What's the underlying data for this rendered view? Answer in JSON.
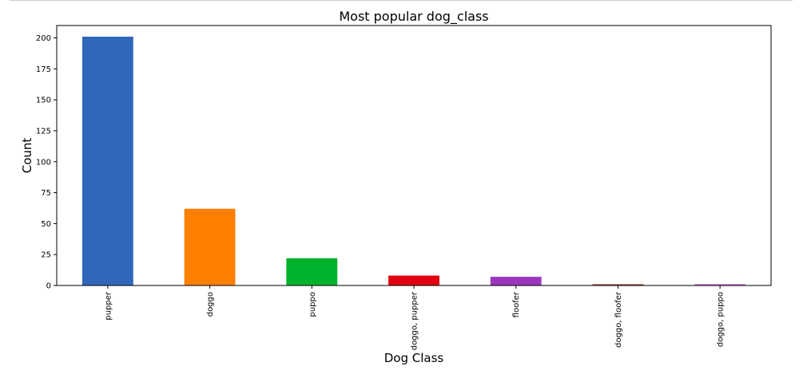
{
  "chart_data": {
    "type": "bar",
    "title": "Most popular dog_class",
    "xlabel": "Dog Class",
    "ylabel": "Count",
    "ylim": [
      0,
      210
    ],
    "yticks": [
      0,
      25,
      50,
      75,
      100,
      125,
      150,
      175,
      200
    ],
    "categories": [
      "pupper",
      "doggo",
      "puppo",
      "doggo, pupper",
      "floofer",
      "doggo, floofer",
      "doggo, puppo"
    ],
    "values": [
      201,
      62,
      22,
      8,
      7,
      1,
      1
    ],
    "colors": [
      "#3067b8",
      "#ff7f00",
      "#00b22c",
      "#e00010",
      "#9b36bd",
      "#8a3b1f",
      "#c44cc8"
    ],
    "grid": false,
    "legend": "none"
  }
}
